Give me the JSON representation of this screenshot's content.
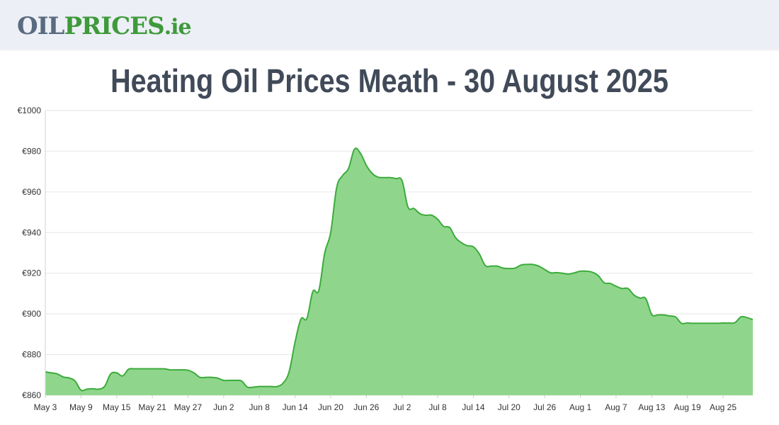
{
  "site": {
    "logo_oil": "OIL",
    "logo_prices": "PRICES",
    "logo_ie": ".ie"
  },
  "page_title": "Heating Oil Prices Meath - 30 August 2025",
  "colors": {
    "line": "#3cab3c",
    "fill": "#8fd68c",
    "grid": "#e6e6e6",
    "header_bg": "#eceff5"
  },
  "chart_data": {
    "type": "area",
    "title": "Heating Oil Prices Meath - 30 August 2025",
    "xlabel": "",
    "ylabel": "",
    "ylim": [
      860,
      1000
    ],
    "y_ticks": [
      "€860",
      "€880",
      "€900",
      "€920",
      "€940",
      "€960",
      "€980",
      "€1000"
    ],
    "y_tick_values": [
      860,
      880,
      900,
      920,
      940,
      960,
      980,
      1000
    ],
    "x_ticks": [
      "May 3",
      "May 9",
      "May 15",
      "May 21",
      "May 27",
      "Jun 2",
      "Jun 8",
      "Jun 14",
      "Jun 20",
      "Jun 26",
      "Jul 2",
      "Jul 8",
      "Jul 14",
      "Jul 20",
      "Jul 26",
      "Aug 1",
      "Aug 7",
      "Aug 13",
      "Aug 19",
      "Aug 25"
    ],
    "grid": true,
    "legend": "none",
    "x": [
      "May 3",
      "May 4",
      "May 5",
      "May 6",
      "May 7",
      "May 8",
      "May 9",
      "May 10",
      "May 11",
      "May 12",
      "May 13",
      "May 14",
      "May 15",
      "May 16",
      "May 17",
      "May 18",
      "May 19",
      "May 20",
      "May 21",
      "May 22",
      "May 23",
      "May 24",
      "May 25",
      "May 26",
      "May 27",
      "May 28",
      "May 29",
      "May 30",
      "May 31",
      "Jun 1",
      "Jun 2",
      "Jun 3",
      "Jun 4",
      "Jun 5",
      "Jun 6",
      "Jun 7",
      "Jun 8",
      "Jun 9",
      "Jun 10",
      "Jun 11",
      "Jun 12",
      "Jun 13",
      "Jun 14",
      "Jun 15",
      "Jun 16",
      "Jun 17",
      "Jun 18",
      "Jun 19",
      "Jun 20",
      "Jun 21",
      "Jun 22",
      "Jun 23",
      "Jun 24",
      "Jun 25",
      "Jun 26",
      "Jun 27",
      "Jun 28",
      "Jun 29",
      "Jun 30",
      "Jul 1",
      "Jul 2",
      "Jul 3",
      "Jul 4",
      "Jul 5",
      "Jul 6",
      "Jul 7",
      "Jul 8",
      "Jul 9",
      "Jul 10",
      "Jul 11",
      "Jul 12",
      "Jul 13",
      "Jul 14",
      "Jul 15",
      "Jul 16",
      "Jul 17",
      "Jul 18",
      "Jul 19",
      "Jul 20",
      "Jul 21",
      "Jul 22",
      "Jul 23",
      "Jul 24",
      "Jul 25",
      "Jul 26",
      "Jul 27",
      "Jul 28",
      "Jul 29",
      "Jul 30",
      "Jul 31",
      "Aug 1",
      "Aug 2",
      "Aug 3",
      "Aug 4",
      "Aug 5",
      "Aug 6",
      "Aug 7",
      "Aug 8",
      "Aug 9",
      "Aug 10",
      "Aug 11",
      "Aug 12",
      "Aug 13",
      "Aug 14",
      "Aug 15",
      "Aug 16",
      "Aug 17",
      "Aug 18",
      "Aug 19",
      "Aug 20",
      "Aug 21",
      "Aug 22",
      "Aug 23",
      "Aug 24",
      "Aug 25",
      "Aug 26",
      "Aug 27",
      "Aug 28",
      "Aug 29",
      "Aug 30"
    ],
    "series": [
      {
        "values": [
          871.5,
          871,
          870.5,
          869,
          868.5,
          867,
          862.5,
          863,
          863.2,
          863,
          864.5,
          870.5,
          871,
          869.5,
          872.8,
          873,
          873,
          873,
          873,
          873,
          873,
          872.5,
          872.5,
          872.5,
          872.3,
          871,
          868.8,
          868.8,
          868.8,
          868.4,
          867.3,
          867.3,
          867.3,
          867,
          864,
          864,
          864.3,
          864.3,
          864.3,
          864.3,
          866,
          871.5,
          886,
          897.5,
          897.8,
          911,
          911.5,
          930,
          940,
          962,
          968,
          971.5,
          981,
          979,
          973,
          969,
          967.2,
          967,
          967,
          966.5,
          965.5,
          952.5,
          951.8,
          949.3,
          948.5,
          948.5,
          946.5,
          943,
          942.5,
          937.5,
          935,
          933.5,
          933,
          929.5,
          923.8,
          923.5,
          923.5,
          922.5,
          922.3,
          922.5,
          924,
          924.3,
          924.3,
          923.5,
          921.8,
          920.2,
          920.3,
          920,
          919.6,
          920.2,
          921,
          921,
          920.5,
          918.8,
          915.3,
          915,
          913.6,
          912.5,
          912.5,
          909.3,
          907.8,
          907.5,
          899.7,
          899.5,
          899.5,
          899,
          898.5,
          895.4,
          895.5,
          895.4,
          895.4,
          895.4,
          895.4,
          895.4,
          895.5,
          895.5,
          895.7,
          898.5,
          898.2,
          897.2
        ]
      }
    ]
  }
}
